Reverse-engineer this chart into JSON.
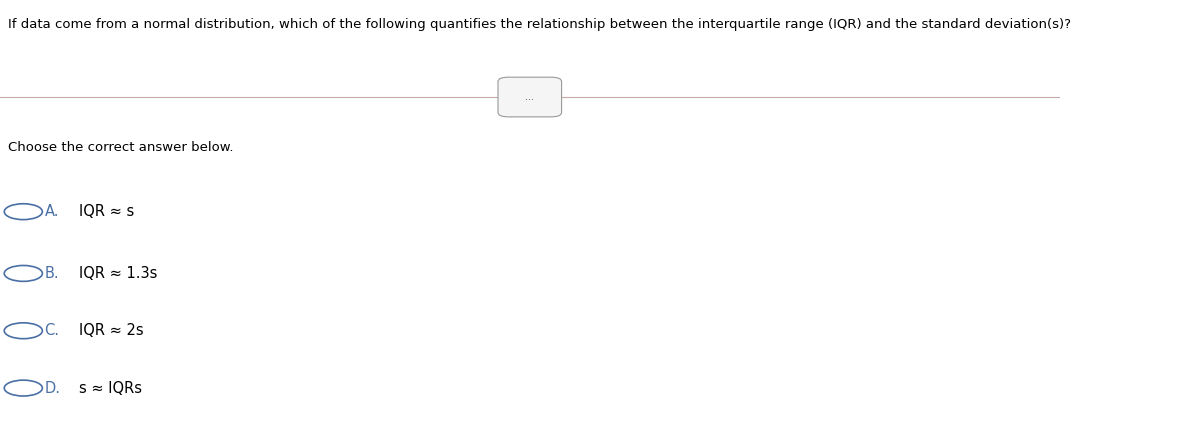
{
  "question": "If data come from a normal distribution, which of the following quantifies the relationship between the interquartile range (IQR) and the standard deviation(s)?",
  "subtitle_button": "...",
  "prompt": "Choose the correct answer below.",
  "options": [
    {
      "label": "A.",
      "text": "IQR ≈ s"
    },
    {
      "label": "B.",
      "text": "IQR ≈ 1.3s"
    },
    {
      "label": "C.",
      "text": "IQR ≈ 2s"
    },
    {
      "label": "D.",
      "text": "s ≈ IQRs"
    }
  ],
  "bg_color": "#ffffff",
  "text_color": "#000000",
  "circle_color": "#4a6fa5",
  "line_color": "#c8a8a8",
  "question_fontsize": 9.5,
  "prompt_fontsize": 9.5,
  "option_fontsize": 10.5,
  "label_color": "#4a6fa5"
}
